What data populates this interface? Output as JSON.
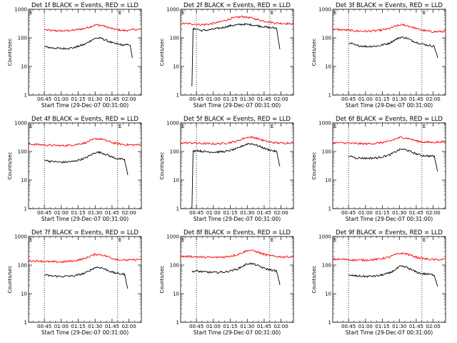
{
  "chart_data": [
    {
      "type": "line",
      "title": "Det 1f BLACK = Events, RED = LLD",
      "xlabel": "Start Time (29-Dec-07 00:31:00)",
      "ylabel": "Counts/sec",
      "yscale": "log",
      "ylim": [
        1,
        1000
      ],
      "xlim_minutes": [
        0,
        100
      ],
      "xticks": [
        "00:45",
        "01:00",
        "01:15",
        "01:30",
        "01:45",
        "02:00"
      ],
      "yticks": [
        "1",
        "10",
        "100",
        "1000"
      ],
      "dotted_lines_minutes": [
        14,
        79
      ],
      "series": [
        {
          "color": "#ff0000",
          "x": [
            14,
            16,
            20,
            30,
            40,
            50,
            55,
            60,
            65,
            70,
            75,
            80,
            85,
            88,
            90,
            95,
            100
          ],
          "y": [
            200,
            190,
            180,
            175,
            185,
            215,
            250,
            285,
            275,
            235,
            205,
            190,
            180,
            185,
            190,
            195,
            200
          ]
        },
        {
          "color": "#000000",
          "x": [
            14,
            16,
            20,
            30,
            40,
            50,
            55,
            60,
            65,
            70,
            75,
            80,
            85,
            88,
            90,
            92
          ],
          "y": [
            50,
            48,
            45,
            42,
            45,
            60,
            80,
            100,
            95,
            78,
            65,
            60,
            55,
            58,
            55,
            20
          ]
        }
      ]
    },
    {
      "type": "line",
      "title": "Det 2f BLACK = Events, RED = LLD",
      "xlabel": "Start Time (29-Dec-07 00:31:00)",
      "ylabel": "Counts/sec",
      "yscale": "log",
      "ylim": [
        1,
        1000
      ],
      "xlim_minutes": [
        0,
        100
      ],
      "xticks": [
        "00:45",
        "01:00",
        "01:15",
        "01:30",
        "01:45",
        "02:00"
      ],
      "yticks": [
        "1",
        "10",
        "100",
        "1000"
      ],
      "dotted_lines_minutes": [
        14,
        79
      ],
      "series": [
        {
          "color": "#ff0000",
          "x": [
            0,
            10,
            14,
            18,
            25,
            35,
            45,
            55,
            62,
            70,
            78,
            85,
            92,
            100
          ],
          "y": [
            320,
            310,
            300,
            290,
            300,
            360,
            480,
            560,
            500,
            420,
            360,
            330,
            320,
            310
          ]
        },
        {
          "color": "#000000",
          "x": [
            10,
            11,
            14,
            18,
            25,
            35,
            45,
            55,
            62,
            70,
            78,
            85,
            88
          ],
          "y": [
            2,
            200,
            210,
            180,
            190,
            220,
            270,
            300,
            290,
            260,
            230,
            220,
            40
          ]
        }
      ]
    },
    {
      "type": "line",
      "title": "Det 3f BLACK = Events, RED = LLD",
      "xlabel": "Start Time (29-Dec-07 00:31:00)",
      "ylabel": "Counts/sec",
      "yscale": "log",
      "ylim": [
        1,
        1000
      ],
      "xlim_minutes": [
        0,
        100
      ],
      "xticks": [
        "00:45",
        "01:00",
        "01:15",
        "01:30",
        "01:45",
        "02:00"
      ],
      "yticks": [
        "1",
        "10",
        "100",
        "1000"
      ],
      "dotted_lines_minutes": [
        14,
        79
      ],
      "series": [
        {
          "color": "#ff0000",
          "x": [
            0,
            10,
            14,
            20,
            30,
            40,
            50,
            55,
            60,
            65,
            70,
            75,
            80,
            85,
            90,
            95,
            100
          ],
          "y": [
            200,
            190,
            185,
            175,
            170,
            180,
            210,
            250,
            285,
            275,
            240,
            205,
            185,
            170,
            165,
            165,
            170
          ]
        },
        {
          "color": "#000000",
          "x": [
            14,
            16,
            20,
            30,
            40,
            50,
            55,
            60,
            65,
            70,
            75,
            80,
            85,
            90,
            93
          ],
          "y": [
            60,
            65,
            55,
            50,
            52,
            65,
            85,
            105,
            100,
            80,
            68,
            60,
            55,
            50,
            20
          ]
        }
      ]
    },
    {
      "type": "line",
      "title": "Det 4f BLACK = Events, RED = LLD",
      "xlabel": "Start Time (29-Dec-07 00:31:00)",
      "ylabel": "Counts/sec",
      "yscale": "log",
      "ylim": [
        1,
        1000
      ],
      "xlim_minutes": [
        0,
        100
      ],
      "xticks": [
        "00:45",
        "01:00",
        "01:15",
        "01:30",
        "01:45",
        "02:00"
      ],
      "yticks": [
        "1",
        "10",
        "100",
        "1000"
      ],
      "dotted_lines_minutes": [
        14,
        79
      ],
      "series": [
        {
          "color": "#ff0000",
          "x": [
            0,
            10,
            14,
            20,
            30,
            40,
            50,
            55,
            60,
            65,
            70,
            75,
            80,
            85,
            90,
            95,
            100
          ],
          "y": [
            180,
            175,
            170,
            165,
            160,
            170,
            200,
            240,
            280,
            270,
            235,
            200,
            185,
            175,
            170,
            170,
            175
          ]
        },
        {
          "color": "#000000",
          "x": [
            14,
            16,
            20,
            30,
            40,
            50,
            55,
            60,
            65,
            70,
            75,
            80,
            85,
            88
          ],
          "y": [
            50,
            48,
            45,
            42,
            45,
            58,
            75,
            95,
            90,
            75,
            62,
            55,
            52,
            15
          ]
        }
      ]
    },
    {
      "type": "line",
      "title": "Det 5f BLACK = Events, RED = LLD",
      "xlabel": "Start Time (29-Dec-07 00:31:00)",
      "ylabel": "Counts/sec",
      "yscale": "log",
      "ylim": [
        1,
        1000
      ],
      "xlim_minutes": [
        0,
        100
      ],
      "xticks": [
        "00:45",
        "01:00",
        "01:15",
        "01:30",
        "01:45",
        "02:00"
      ],
      "yticks": [
        "1",
        "10",
        "100",
        "1000"
      ],
      "dotted_lines_minutes": [
        14,
        79
      ],
      "series": [
        {
          "color": "#ff0000",
          "x": [
            0,
            10,
            14,
            20,
            30,
            40,
            50,
            55,
            60,
            65,
            70,
            75,
            80,
            85,
            90,
            95,
            100
          ],
          "y": [
            200,
            200,
            195,
            190,
            185,
            195,
            230,
            280,
            320,
            310,
            270,
            230,
            210,
            200,
            195,
            200,
            205
          ]
        },
        {
          "color": "#000000",
          "x": [
            10,
            11,
            14,
            20,
            30,
            40,
            50,
            55,
            60,
            65,
            70,
            75,
            80,
            85,
            88
          ],
          "y": [
            1,
            100,
            110,
            100,
            95,
            100,
            125,
            160,
            190,
            180,
            150,
            125,
            110,
            100,
            30
          ]
        }
      ]
    },
    {
      "type": "line",
      "title": "Det 6f BLACK = Events, RED = LLD",
      "xlabel": "Start Time (29-Dec-07 00:31:00)",
      "ylabel": "Counts/sec",
      "yscale": "log",
      "ylim": [
        1,
        1000
      ],
      "xlim_minutes": [
        0,
        100
      ],
      "xticks": [
        "00:45",
        "01:00",
        "01:15",
        "01:30",
        "01:45",
        "02:00"
      ],
      "yticks": [
        "1",
        "10",
        "100",
        "1000"
      ],
      "dotted_lines_minutes": [
        14,
        79
      ],
      "series": [
        {
          "color": "#ff0000",
          "x": [
            0,
            10,
            14,
            20,
            30,
            40,
            50,
            55,
            60,
            65,
            70,
            75,
            80,
            85,
            90,
            95,
            100
          ],
          "y": [
            200,
            200,
            195,
            190,
            185,
            195,
            225,
            270,
            310,
            300,
            265,
            230,
            215,
            210,
            210,
            215,
            220
          ]
        },
        {
          "color": "#000000",
          "x": [
            14,
            16,
            20,
            30,
            40,
            50,
            55,
            60,
            65,
            70,
            75,
            80,
            85,
            90,
            93
          ],
          "y": [
            65,
            70,
            60,
            58,
            60,
            75,
            95,
            120,
            115,
            95,
            80,
            72,
            70,
            68,
            20
          ]
        }
      ]
    },
    {
      "type": "line",
      "title": "Det 7f BLACK = Events, RED = LLD",
      "xlabel": "Start Time (29-Dec-07 00:31:00)",
      "ylabel": "Counts/sec",
      "yscale": "log",
      "ylim": [
        1,
        1000
      ],
      "xlim_minutes": [
        0,
        100
      ],
      "xticks": [
        "00:45",
        "01:00",
        "01:15",
        "01:30",
        "01:45",
        "02:00"
      ],
      "yticks": [
        "1",
        "10",
        "100",
        "1000"
      ],
      "dotted_lines_minutes": [
        14,
        79
      ],
      "series": [
        {
          "color": "#ff0000",
          "x": [
            0,
            10,
            14,
            20,
            30,
            40,
            50,
            55,
            60,
            65,
            70,
            75,
            80,
            85,
            90,
            95,
            100
          ],
          "y": [
            140,
            140,
            135,
            130,
            130,
            140,
            170,
            210,
            240,
            230,
            200,
            170,
            155,
            150,
            150,
            155,
            160
          ]
        },
        {
          "color": "#000000",
          "x": [
            14,
            16,
            20,
            30,
            40,
            50,
            55,
            60,
            65,
            70,
            75,
            80,
            85,
            88
          ],
          "y": [
            45,
            44,
            42,
            40,
            42,
            52,
            68,
            85,
            80,
            66,
            55,
            50,
            48,
            15
          ]
        }
      ]
    },
    {
      "type": "line",
      "title": "Det 8f BLACK = Events, RED = LLD",
      "xlabel": "Start Time (29-Dec-07 00:31:00)",
      "ylabel": "Counts/sec",
      "yscale": "log",
      "ylim": [
        1,
        1000
      ],
      "xlim_minutes": [
        0,
        100
      ],
      "xticks": [
        "00:45",
        "01:00",
        "01:15",
        "01:30",
        "01:45",
        "02:00"
      ],
      "yticks": [
        "1",
        "10",
        "100",
        "1000"
      ],
      "dotted_lines_minutes": [
        14,
        79
      ],
      "series": [
        {
          "color": "#ff0000",
          "x": [
            0,
            10,
            14,
            20,
            30,
            40,
            50,
            55,
            60,
            65,
            70,
            75,
            80,
            85,
            90,
            95,
            100
          ],
          "y": [
            200,
            200,
            195,
            190,
            185,
            195,
            230,
            280,
            330,
            315,
            270,
            230,
            210,
            200,
            195,
            195,
            200
          ]
        },
        {
          "color": "#000000",
          "x": [
            10,
            14,
            20,
            30,
            40,
            50,
            55,
            60,
            65,
            70,
            75,
            80,
            85,
            88
          ],
          "y": [
            60,
            62,
            58,
            55,
            58,
            72,
            92,
            115,
            108,
            90,
            75,
            68,
            62,
            20
          ]
        }
      ]
    },
    {
      "type": "line",
      "title": "Det 9f BLACK = Events, RED = LLD",
      "xlabel": "Start Time (29-Dec-07 00:31:00)",
      "ylabel": "Counts/sec",
      "yscale": "log",
      "ylim": [
        1,
        1000
      ],
      "xlim_minutes": [
        0,
        100
      ],
      "xticks": [
        "00:45",
        "01:00",
        "01:15",
        "01:30",
        "01:45",
        "02:00"
      ],
      "yticks": [
        "1",
        "10",
        "100",
        "1000"
      ],
      "dotted_lines_minutes": [
        14,
        79
      ],
      "series": [
        {
          "color": "#ff0000",
          "x": [
            0,
            10,
            14,
            20,
            30,
            40,
            50,
            55,
            60,
            65,
            70,
            75,
            80,
            85,
            90,
            95,
            100
          ],
          "y": [
            160,
            160,
            155,
            150,
            150,
            160,
            190,
            230,
            260,
            250,
            215,
            185,
            170,
            160,
            155,
            155,
            160
          ]
        },
        {
          "color": "#000000",
          "x": [
            14,
            16,
            20,
            30,
            40,
            50,
            55,
            60,
            65,
            70,
            75,
            80,
            85,
            90,
            93
          ],
          "y": [
            45,
            44,
            42,
            40,
            42,
            52,
            68,
            90,
            85,
            68,
            55,
            50,
            48,
            45,
            18
          ]
        }
      ]
    }
  ]
}
